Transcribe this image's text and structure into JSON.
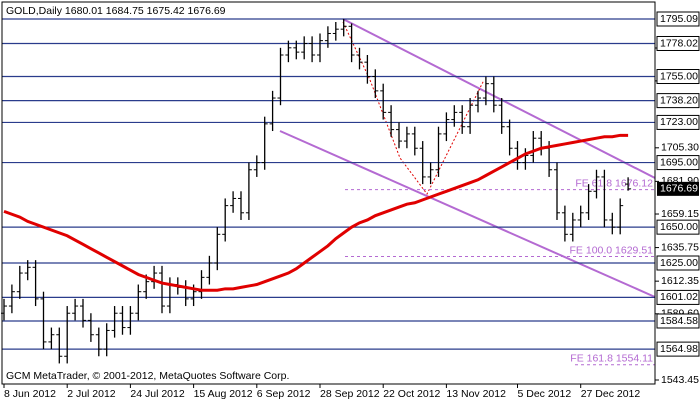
{
  "chart_data": {
    "type": "ohlc",
    "title": "GOLD,Daily  1680.01 1684.75 1675.42 1676.69",
    "footer": "GCM MetaTrader, © 2001-2012, MetaQuotes Software Corp.",
    "categories": [
      "8 Jun 2012",
      null,
      null,
      null,
      null,
      null,
      null,
      null,
      "2 Jul 2012",
      null,
      null,
      null,
      null,
      null,
      null,
      null,
      "24 Jul 2012",
      null,
      null,
      null,
      null,
      null,
      null,
      null,
      "15 Aug 2012",
      null,
      null,
      null,
      null,
      null,
      null,
      null,
      "6 Sep 2012",
      null,
      null,
      null,
      null,
      null,
      null,
      null,
      "28 Sep 2012",
      null,
      null,
      null,
      null,
      null,
      null,
      null,
      "22 Oct 2012",
      null,
      null,
      null,
      null,
      null,
      null,
      null,
      "13 Nov 2012",
      null,
      null,
      null,
      null,
      null,
      null,
      null,
      null,
      "5 Dec 2012",
      null,
      null,
      null,
      null,
      null,
      null,
      null,
      "27 Dec 2012",
      null,
      null,
      null,
      null,
      null,
      null
    ],
    "open": [
      1590,
      1595,
      1605,
      1618,
      1622,
      1600,
      1570,
      1575,
      1560,
      1590,
      1595,
      1585,
      1575,
      1565,
      1578,
      1590,
      1580,
      1590,
      1605,
      1612,
      1618,
      1595,
      1610,
      1608,
      1600,
      1605,
      1615,
      1625,
      1645,
      1665,
      1670,
      1660,
      1690,
      1695,
      1722,
      1740,
      1770,
      1775,
      1772,
      1778,
      1770,
      1780,
      1785,
      1788,
      1790,
      1770,
      1765,
      1755,
      1745,
      1730,
      1718,
      1710,
      1715,
      1705,
      1685,
      1690,
      1715,
      1725,
      1730,
      1720,
      1735,
      1740,
      1750,
      1735,
      1720,
      1705,
      1695,
      1700,
      1712,
      1705,
      1690,
      1660,
      1645,
      1655,
      1660,
      1675,
      1685,
      1655,
      1650,
      1680.01
    ],
    "high": [
      1600,
      1610,
      1623,
      1627,
      1627,
      1605,
      1580,
      1580,
      1595,
      1600,
      1600,
      1590,
      1580,
      1583,
      1595,
      1595,
      1595,
      1610,
      1617,
      1623,
      1623,
      1615,
      1615,
      1613,
      1610,
      1620,
      1630,
      1650,
      1670,
      1675,
      1675,
      1695,
      1700,
      1727,
      1745,
      1775,
      1780,
      1780,
      1783,
      1783,
      1785,
      1790,
      1793,
      1795.09,
      1792,
      1775,
      1770,
      1760,
      1750,
      1735,
      1723,
      1720,
      1720,
      1710,
      1695,
      1720,
      1730,
      1735,
      1735,
      1740,
      1745,
      1755,
      1755,
      1740,
      1725,
      1710,
      1705,
      1717,
      1717,
      1710,
      1695,
      1665,
      1660,
      1665,
      1680,
      1690,
      1690,
      1660,
      1670,
      1684.75
    ],
    "low": [
      1585,
      1590,
      1600,
      1613,
      1595,
      1565,
      1565,
      1555,
      1555,
      1585,
      1580,
      1570,
      1560,
      1560,
      1573,
      1575,
      1575,
      1585,
      1600,
      1607,
      1590,
      1590,
      1603,
      1595,
      1595,
      1600,
      1610,
      1620,
      1640,
      1660,
      1655,
      1655,
      1685,
      1690,
      1717,
      1735,
      1765,
      1767,
      1767,
      1765,
      1765,
      1775,
      1780,
      1783,
      1765,
      1760,
      1750,
      1740,
      1725,
      1713,
      1705,
      1705,
      1700,
      1680,
      1680,
      1685,
      1710,
      1720,
      1715,
      1715,
      1730,
      1735,
      1730,
      1715,
      1700,
      1690,
      1690,
      1695,
      1700,
      1685,
      1655,
      1640,
      1640,
      1650,
      1655,
      1670,
      1650,
      1645,
      1645,
      1675.42
    ],
    "close": [
      1595,
      1605,
      1618,
      1622,
      1600,
      1570,
      1575,
      1560,
      1590,
      1595,
      1585,
      1575,
      1565,
      1578,
      1590,
      1580,
      1590,
      1605,
      1612,
      1618,
      1595,
      1610,
      1608,
      1600,
      1605,
      1615,
      1625,
      1645,
      1665,
      1670,
      1660,
      1690,
      1695,
      1722,
      1740,
      1770,
      1775,
      1772,
      1778,
      1770,
      1780,
      1785,
      1788,
      1790,
      1770,
      1765,
      1755,
      1745,
      1730,
      1718,
      1710,
      1715,
      1705,
      1685,
      1690,
      1715,
      1725,
      1730,
      1720,
      1735,
      1740,
      1750,
      1735,
      1720,
      1705,
      1695,
      1700,
      1712,
      1705,
      1690,
      1660,
      1645,
      1655,
      1660,
      1675,
      1685,
      1655,
      1650,
      1665,
      1676.69
    ],
    "color": "#000000",
    "moving_average": {
      "color": "#e00000",
      "values": [
        1661,
        1659,
        1657,
        1654,
        1652,
        1650,
        1648,
        1646,
        1644,
        1641,
        1638,
        1635,
        1632,
        1629,
        1626,
        1623,
        1620,
        1617,
        1615,
        1613,
        1611,
        1610,
        1609,
        1608,
        1607,
        1606,
        1606,
        1606,
        1607,
        1607,
        1608,
        1609,
        1610,
        1612,
        1614,
        1616,
        1618,
        1621,
        1625,
        1629,
        1633,
        1637,
        1642,
        1646,
        1650,
        1653,
        1655,
        1658,
        1660,
        1662,
        1664,
        1666,
        1667,
        1669,
        1671,
        1673,
        1675,
        1677,
        1679,
        1681,
        1683,
        1686,
        1689,
        1692,
        1695,
        1698,
        1701,
        1703,
        1705,
        1706,
        1707,
        1708,
        1709,
        1710,
        1711,
        1712,
        1713,
        1713,
        1714,
        1714
      ]
    },
    "levels": [
      1795.09,
      1778.02,
      {
        "value": 1755,
        "label": "1755.00"
      },
      {
        "value": 1738.2,
        "label": "1738.20"
      },
      {
        "value": 1723,
        "label": "1723.00"
      },
      {
        "value": 1695,
        "label": "1695.00"
      },
      {
        "value": 1650,
        "label": "1650.00"
      },
      {
        "value": 1625,
        "label": "1625.00"
      },
      1601.02,
      1584.58,
      1564.98
    ],
    "level_color": "#2a3c8c",
    "annotations": [
      {
        "label": "FE 61.8 1676.12",
        "value": 1676.12
      },
      {
        "label": "FE 100.0 1629.51",
        "value": 1629.51
      },
      {
        "label": "FE 161.8 1554.11",
        "value": 1554.11
      }
    ],
    "annotation_color": "#b46ad2",
    "ylim": [
      1540.66,
      1806.94
    ],
    "yticks": [
      1774.88,
      1751.95,
      {
        "value": 1705.3,
        "label": "1705.30"
      },
      {
        "value": 1681.9,
        "label": "1681.90"
      },
      1659.15,
      1635.75,
      1612.35,
      {
        "value": 1589.6,
        "label": "1589.60"
      },
      1543.45
    ]
  }
}
